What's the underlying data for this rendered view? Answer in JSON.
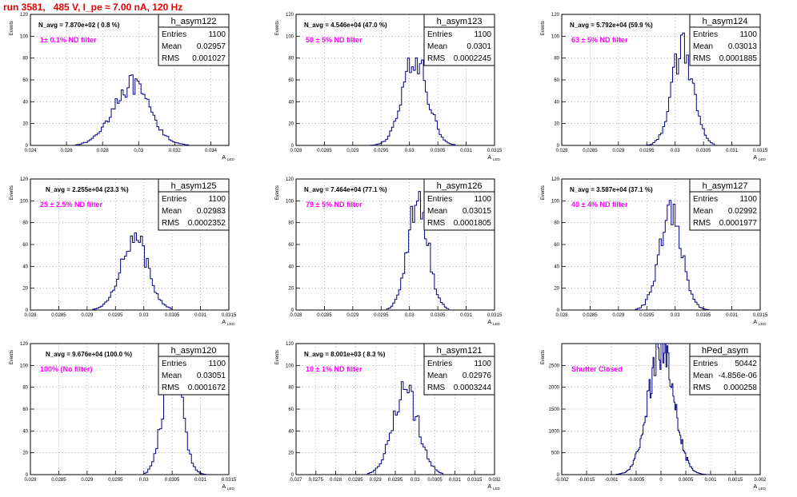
{
  "page": {
    "title": "run 3581,   485 V, I_pe ≈ 7.00 nA, 120 Hz",
    "y_label": "Events",
    "x_label": "A",
    "x_label_sub": "LED",
    "stats_labels": {
      "entries": "Entries",
      "mean": "Mean",
      "rms": "RMS"
    }
  },
  "colors": {
    "title": "#e60000",
    "filter": "#ff00ff",
    "hist": "#000080",
    "grid": "#888888",
    "text": "#000000"
  },
  "chart_data": [
    {
      "type": "histogram",
      "name": "h_asym122",
      "navg": "N_avg = 7.870e+02 ( 0.8 %)",
      "filter": "1± 0.1% ND filter",
      "stats": {
        "entries": "1100",
        "mean": "0.02957",
        "rms": "0.001027"
      },
      "xlim": [
        0.024,
        0.035
      ],
      "ylim": [
        0,
        120
      ],
      "xticks": [
        0.024,
        0.026,
        0.028,
        0.03,
        0.032,
        0.034
      ],
      "xtick_labels": [
        "0.024",
        "0.026",
        "0.028",
        "0.03",
        "0.032",
        "0.034"
      ],
      "yticks": [
        0,
        20,
        40,
        60,
        80,
        100,
        120
      ],
      "mean": 0.02957,
      "sigma": 0.001027,
      "peak": 55,
      "step": 0.00011,
      "range": [
        0.0265,
        0.0328
      ]
    },
    {
      "type": "histogram",
      "name": "h_asym123",
      "navg": "N_avg = 4.546e+04 (47.0 %)",
      "filter": "50 ± 5% ND filter",
      "stats": {
        "entries": "1100",
        "mean": "0.0301",
        "rms": "0.0002245"
      },
      "xlim": [
        0.028,
        0.0315
      ],
      "ylim": [
        0,
        120
      ],
      "xticks": [
        0.028,
        0.0285,
        0.029,
        0.0295,
        0.03,
        0.0305,
        0.031,
        0.0315
      ],
      "xtick_labels": [
        "0.028",
        "0.0285",
        "0.029",
        "0.0295",
        "0.03",
        "0.0305",
        "0.031",
        "0.0315"
      ],
      "yticks": [
        0,
        20,
        40,
        60,
        80,
        100,
        120
      ],
      "mean": 0.0301,
      "sigma": 0.0002245,
      "peak": 78,
      "step": 3.5e-05,
      "range": [
        0.0293,
        0.0308
      ]
    },
    {
      "type": "histogram",
      "name": "h_asym124",
      "navg": "N_avg = 5.792e+04 (59.9 %)",
      "filter": "63 ± 5% ND filter",
      "stats": {
        "entries": "1100",
        "mean": "0.03013",
        "rms": "0.0001885"
      },
      "xlim": [
        0.028,
        0.0315
      ],
      "ylim": [
        0,
        120
      ],
      "xticks": [
        0.028,
        0.0285,
        0.029,
        0.0295,
        0.03,
        0.0305,
        0.031,
        0.0315
      ],
      "xtick_labels": [
        "0.028",
        "0.0285",
        "0.029",
        "0.0295",
        "0.03",
        "0.0305",
        "0.031",
        "0.0315"
      ],
      "yticks": [
        0,
        20,
        40,
        60,
        80,
        100,
        120
      ],
      "mean": 0.03013,
      "sigma": 0.0001885,
      "peak": 88,
      "step": 3.5e-05,
      "range": [
        0.0295,
        0.0307
      ]
    },
    {
      "type": "histogram",
      "name": "h_asym125",
      "navg": "N_avg = 2.255e+04 (23.3 %)",
      "filter": "25 ± 2.5% ND filter",
      "stats": {
        "entries": "1100",
        "mean": "0.02983",
        "rms": "0.0002352"
      },
      "xlim": [
        0.028,
        0.0315
      ],
      "ylim": [
        0,
        120
      ],
      "xticks": [
        0.028,
        0.0285,
        0.029,
        0.0295,
        0.03,
        0.0305,
        0.031,
        0.0315
      ],
      "xtick_labels": [
        "0.028",
        "0.0285",
        "0.029",
        "0.0295",
        "0.03",
        "0.0305",
        "0.031",
        "0.0315"
      ],
      "yticks": [
        0,
        20,
        40,
        60,
        80,
        100,
        120
      ],
      "mean": 0.02983,
      "sigma": 0.0002352,
      "peak": 67,
      "step": 3.5e-05,
      "range": [
        0.0291,
        0.0305
      ]
    },
    {
      "type": "histogram",
      "name": "h_asym126",
      "navg": "N_avg = 7.464e+04 (77.1 %)",
      "filter": "79 ± 5% ND filter",
      "stats": {
        "entries": "1100",
        "mean": "0.03015",
        "rms": "0.0001805"
      },
      "xlim": [
        0.028,
        0.0315
      ],
      "ylim": [
        0,
        120
      ],
      "xticks": [
        0.028,
        0.0285,
        0.029,
        0.0295,
        0.03,
        0.0305,
        0.031,
        0.0315
      ],
      "xtick_labels": [
        "0.028",
        "0.0285",
        "0.029",
        "0.0295",
        "0.03",
        "0.0305",
        "0.031",
        "0.0315"
      ],
      "yticks": [
        0,
        20,
        40,
        60,
        80,
        100,
        120
      ],
      "mean": 0.03015,
      "sigma": 0.0001805,
      "peak": 98,
      "step": 3.5e-05,
      "range": [
        0.0296,
        0.0307
      ]
    },
    {
      "type": "histogram",
      "name": "h_asym127",
      "navg": "N_avg = 3.587e+04 (37.1 %)",
      "filter": "40 ± 4% ND filter",
      "stats": {
        "entries": "1100",
        "mean": "0.02992",
        "rms": "0.0001977"
      },
      "xlim": [
        0.028,
        0.0315
      ],
      "ylim": [
        0,
        120
      ],
      "xticks": [
        0.028,
        0.0285,
        0.029,
        0.0295,
        0.03,
        0.0305,
        0.031,
        0.0315
      ],
      "xtick_labels": [
        "0.028",
        "0.0285",
        "0.029",
        "0.0295",
        "0.03",
        "0.0305",
        "0.031",
        "0.0315"
      ],
      "yticks": [
        0,
        20,
        40,
        60,
        80,
        100,
        120
      ],
      "mean": 0.02992,
      "sigma": 0.0001977,
      "peak": 88,
      "step": 3.5e-05,
      "range": [
        0.0293,
        0.0306
      ]
    },
    {
      "type": "histogram",
      "name": "h_asym120",
      "navg": "N_avg = 9.676e+04 (100.0 %)",
      "filter": "100% (No filter)",
      "stats": {
        "entries": "1100",
        "mean": "0.03051",
        "rms": "0.0001672"
      },
      "xlim": [
        0.028,
        0.0315
      ],
      "ylim": [
        0,
        120
      ],
      "xticks": [
        0.028,
        0.0285,
        0.029,
        0.0295,
        0.03,
        0.0305,
        0.031,
        0.0315
      ],
      "xtick_labels": [
        "0.028",
        "0.0285",
        "0.029",
        "0.0295",
        "0.03",
        "0.0305",
        "0.031",
        "0.0315"
      ],
      "yticks": [
        0,
        20,
        40,
        60,
        80,
        100,
        120
      ],
      "mean": 0.03051,
      "sigma": 0.0001672,
      "peak": 105,
      "step": 3.5e-05,
      "range": [
        0.03,
        0.0311
      ]
    },
    {
      "type": "histogram",
      "name": "h_asym121",
      "navg": "N_avg = 8.001e+03 ( 8.3 %)",
      "filter": "10 ± 1% ND filter",
      "stats": {
        "entries": "1100",
        "mean": "0.02976",
        "rms": "0.0003244"
      },
      "xlim": [
        0.027,
        0.032
      ],
      "ylim": [
        0,
        120
      ],
      "xticks": [
        0.027,
        0.0275,
        0.028,
        0.0285,
        0.029,
        0.0295,
        0.03,
        0.0305,
        0.031,
        0.0315,
        0.032
      ],
      "xtick_labels": [
        "0.027",
        "0.0275",
        "0.028",
        "0.0285",
        "0.029",
        "0.0295",
        "0.03",
        "0.0305",
        "0.031",
        "0.0315",
        "0.032"
      ],
      "yticks": [
        0,
        20,
        40,
        60,
        80,
        100,
        120
      ],
      "mean": 0.02976,
      "sigma": 0.0003244,
      "peak": 75,
      "step": 5e-05,
      "range": [
        0.0288,
        0.0307
      ]
    },
    {
      "type": "histogram",
      "name": "hPed_asym",
      "navg": "",
      "filter": "Shutter Closed",
      "stats": {
        "entries": "50442",
        "mean": "-4.856e-06",
        "rms": "0.000258"
      },
      "xlim": [
        -0.002,
        0.002
      ],
      "ylim": [
        0,
        3000
      ],
      "xticks": [
        -0.002,
        -0.0015,
        -0.001,
        -0.0005,
        0,
        0.0005,
        0.001,
        0.0015,
        0.002
      ],
      "xtick_labels": [
        "-0.002",
        "-0.0015",
        "-0.001",
        "-0.0005",
        "0",
        "0.0005",
        "0.001",
        "0.0015",
        "0.002"
      ],
      "yticks": [
        0,
        500,
        1000,
        1500,
        2000,
        2500
      ],
      "mean": -4.856e-06,
      "sigma": 0.000258,
      "peak": 2900,
      "step": 2e-05,
      "range": [
        -0.0009,
        0.0009
      ]
    }
  ]
}
